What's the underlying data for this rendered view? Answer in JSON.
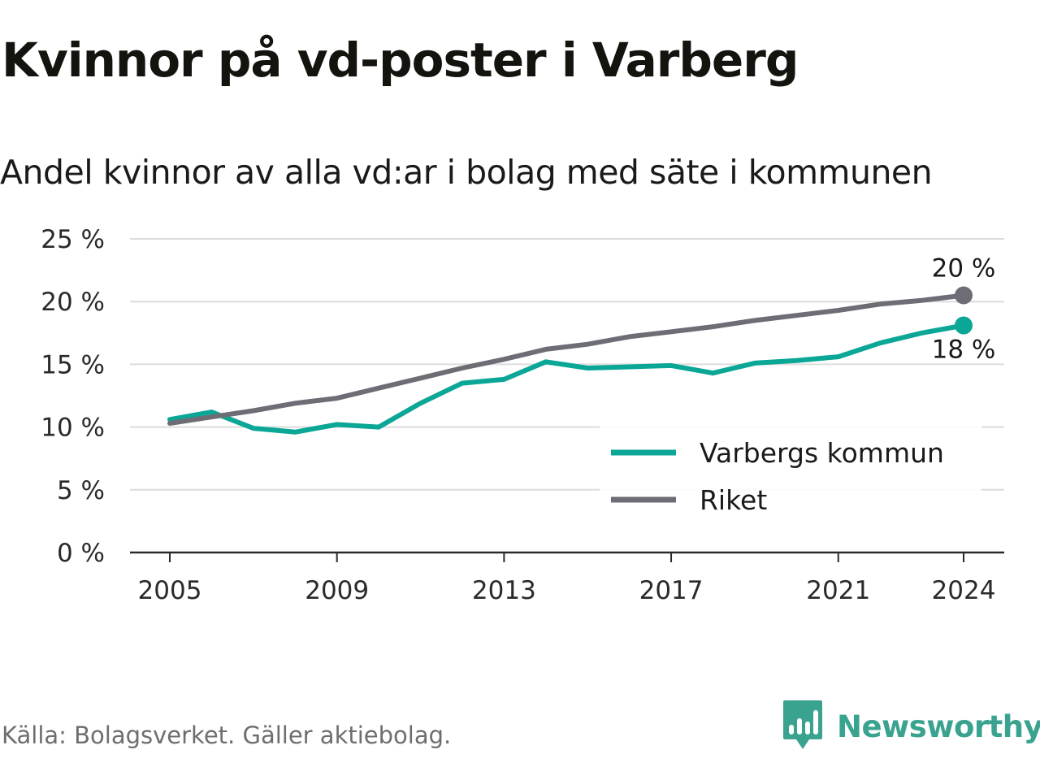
{
  "title": "Kvinnor på vd-poster i Varberg",
  "subtitle": "Andel kvinnor av alla vd:ar i bolag med säte i kommunen",
  "source": "Källa: Bolagsverket. Gäller aktiebolag.",
  "brand": {
    "name": "Newsworthy",
    "logo_icon": "bar-chart-speech-bubble-icon",
    "color": "#3aa38f"
  },
  "chart_data": {
    "type": "line",
    "x": [
      2005,
      2006,
      2007,
      2008,
      2009,
      2010,
      2011,
      2012,
      2013,
      2014,
      2015,
      2016,
      2017,
      2018,
      2019,
      2020,
      2021,
      2022,
      2023,
      2024
    ],
    "xticks": [
      2005,
      2009,
      2013,
      2017,
      2021,
      2024
    ],
    "yticks": [
      0,
      5,
      10,
      15,
      20,
      25
    ],
    "ytick_labels": [
      "0 %",
      "5 %",
      "10 %",
      "15 %",
      "20 %",
      "25 %"
    ],
    "ylim": [
      0,
      25
    ],
    "grid": true,
    "legend_position": "bottom-right",
    "series": [
      {
        "name": "Varbergs kommun",
        "color": "#0aa696",
        "values": [
          10.6,
          11.2,
          9.9,
          9.6,
          10.2,
          10.0,
          11.9,
          13.5,
          13.8,
          15.2,
          14.7,
          14.8,
          14.9,
          14.3,
          15.1,
          15.3,
          15.6,
          16.7,
          17.5,
          18.1
        ],
        "end_label": "18 %"
      },
      {
        "name": "Riket",
        "color": "#6e6d75",
        "values": [
          10.3,
          10.8,
          11.3,
          11.9,
          12.3,
          13.1,
          13.9,
          14.7,
          15.4,
          16.2,
          16.6,
          17.2,
          17.6,
          18.0,
          18.5,
          18.9,
          19.3,
          19.8,
          20.1,
          20.5
        ],
        "end_label": "20 %"
      }
    ]
  }
}
